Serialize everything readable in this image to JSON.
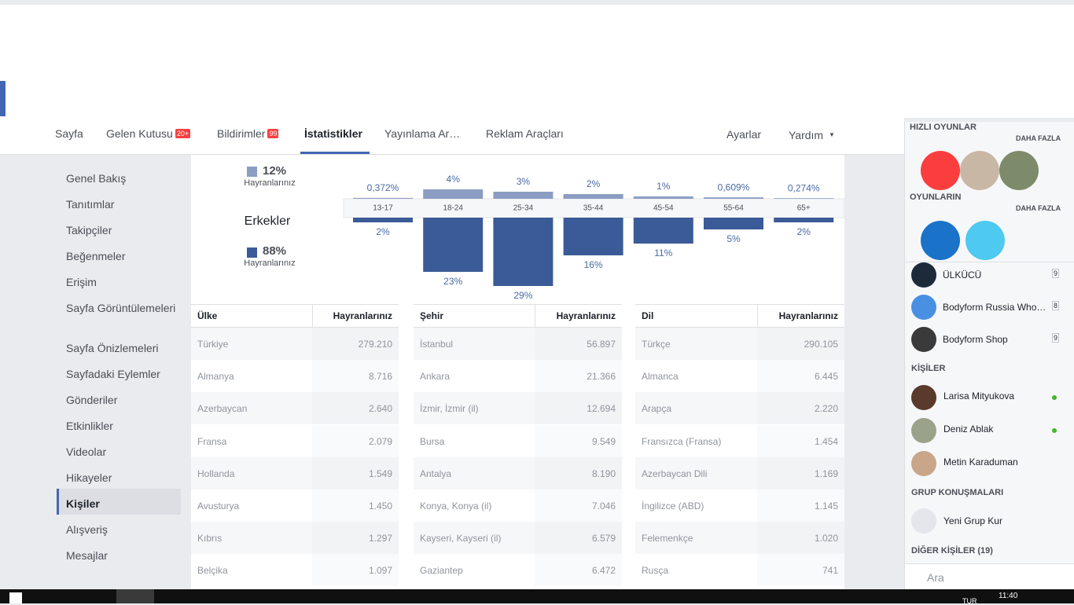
{
  "header": {
    "tabs": [
      {
        "label": "Sayfa"
      },
      {
        "label": "Gelen Kutusu",
        "badge": "20+"
      },
      {
        "label": "Bildirimler",
        "badge": "99"
      },
      {
        "label": "İstatistikler"
      },
      {
        "label": "Yayınlama Ar…"
      },
      {
        "label": "Reklam Araçları"
      }
    ],
    "active_tab": 3,
    "right": [
      "Ayarlar",
      "Yardım"
    ]
  },
  "nav": {
    "items": [
      "Genel Bakış",
      "Tanıtımlar",
      "Takipçiler",
      "Beğenmeler",
      "Erişim",
      "Sayfa Görüntülemeleri",
      "Sayfa Önizlemeleri",
      "Sayfadaki Eylemler",
      "Gönderiler",
      "Etkinlikler",
      "Videolar",
      "Hikayeler",
      "Kişiler",
      "Alışveriş",
      "Mesajlar"
    ],
    "active": 12
  },
  "demographics": {
    "women": {
      "share": "12%",
      "caption": "Hayranlarınız"
    },
    "men": {
      "name": "Erkekler",
      "share": "88%",
      "caption": "Hayranlarınız"
    },
    "age_groups": [
      "13-17",
      "18-24",
      "25-34",
      "35-44",
      "45-54",
      "55-64",
      "65+"
    ],
    "women_values": [
      0.372,
      4,
      3,
      2,
      1,
      0.609,
      0.274
    ],
    "women_value_labels": [
      "0,372%",
      "4%",
      "3%",
      "2%",
      "1%",
      "0,609%",
      "0,274%"
    ],
    "men_values": [
      2,
      23,
      29,
      16,
      11,
      5,
      2
    ],
    "men_value_labels": [
      "2%",
      "23%",
      "29%",
      "16%",
      "11%",
      "5%",
      "2%"
    ],
    "women_color": "#8b9dc3",
    "men_color": "#3b5b98"
  },
  "tables": [
    {
      "columns": [
        "Ülke",
        "Hayranlarınız"
      ],
      "rows": [
        [
          "Türkiye",
          "279.210"
        ],
        [
          "Almanya",
          "8.716"
        ],
        [
          "Azerbaycan",
          "2.640"
        ],
        [
          "Fransa",
          "2.079"
        ],
        [
          "Hollanda",
          "1.549"
        ],
        [
          "Avusturya",
          "1.450"
        ],
        [
          "Kıbrıs",
          "1.297"
        ],
        [
          "Belçika",
          "1.097"
        ]
      ]
    },
    {
      "columns": [
        "Şehir",
        "Hayranlarınız"
      ],
      "rows": [
        [
          "İstanbul",
          "56.897"
        ],
        [
          "Ankara",
          "21.366"
        ],
        [
          "İzmir, İzmir (il)",
          "12.694"
        ],
        [
          "Bursa",
          "9.549"
        ],
        [
          "Antalya",
          "8.190"
        ],
        [
          "Konya, Konya (il)",
          "7.046"
        ],
        [
          "Kayseri, Kayseri (il)",
          "6.579"
        ],
        [
          "Gaziantep",
          "6.472"
        ]
      ]
    },
    {
      "columns": [
        "Dil",
        "Hayranlarınız"
      ],
      "rows": [
        [
          "Türkçe",
          "290.105"
        ],
        [
          "Almanca",
          "6.445"
        ],
        [
          "Arapça",
          "2.220"
        ],
        [
          "Fransızca (Fransa)",
          "1.454"
        ],
        [
          "Azerbaycan Dili",
          "1.169"
        ],
        [
          "İngilizce (ABD)",
          "1.145"
        ],
        [
          "Felemenkçe",
          "1.020"
        ],
        [
          "Rusça",
          "741"
        ]
      ]
    }
  ],
  "sidebar": {
    "games_title": "HIZLI OYUNLAR",
    "games_more": "DAHA FAZLA",
    "your_games": "OYUNLARIN",
    "your_games_more": "DAHA FAZLA",
    "pages": [
      {
        "name": "ÜLKÜCÜ",
        "count": "9"
      },
      {
        "name": "Bodyform Russia Who…",
        "count": "8"
      },
      {
        "name": "Bodyform Shop",
        "count": "9"
      }
    ],
    "contacts_title": "KİŞİLER",
    "contacts": [
      "Larisa Mityukova",
      "Deniz Ablak",
      "Metin Karaduman"
    ],
    "groups_title": "GRUP KONUŞMALARI",
    "new_group": "Yeni Grup Kur",
    "others": "DİĞER KİŞİLER (19)",
    "search": "Ara"
  },
  "taskbar": {
    "lang": "TUR",
    "time": "11:40"
  }
}
